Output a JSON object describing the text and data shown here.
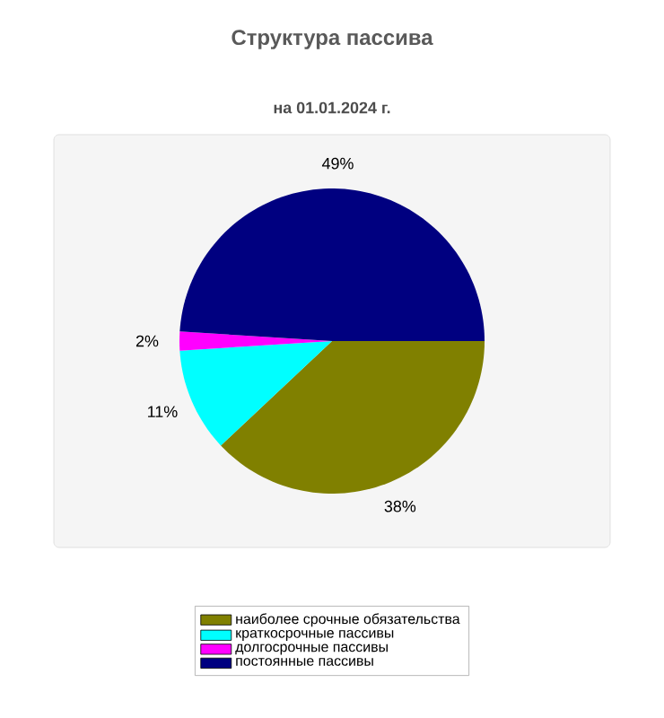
{
  "chart_data": {
    "type": "pie",
    "title": "Структура пассива",
    "subtitle": "на 01.01.2024 г.",
    "categories": [
      "наиболее срочные обязательства",
      "краткосрочные пассивы",
      "долгосрочные пассивы",
      "постоянные пассивы"
    ],
    "values": [
      38,
      11,
      2,
      49
    ],
    "colors": [
      "#808000",
      "#00ffff",
      "#ff00ff",
      "#000080"
    ],
    "value_labels": [
      "38%",
      "11%",
      "2%",
      "49%"
    ],
    "legend": "bottom"
  }
}
